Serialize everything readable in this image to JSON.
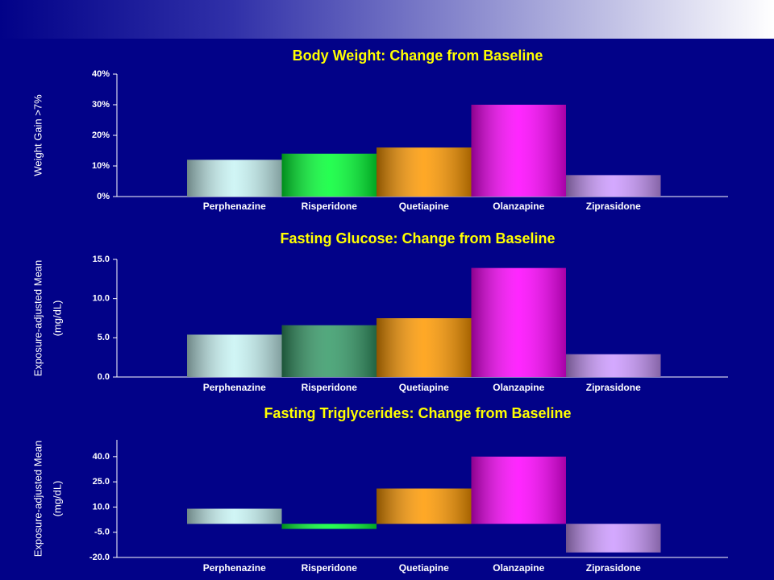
{
  "chart_data": [
    {
      "type": "bar",
      "title": "Body Weight: Change from Baseline",
      "y_label": [
        "Weight Gain >7%"
      ],
      "categories": [
        "Perphenazine",
        "Risperidone",
        "Quetiapine",
        "Olanzapine",
        "Ziprasidone"
      ],
      "values": [
        12,
        14,
        16,
        30,
        7
      ],
      "colors": [
        "#c8f4f4",
        "#00ff33",
        "#ff9900",
        "#ff00ff",
        "#cc99ff"
      ],
      "ylim": [
        0,
        40
      ],
      "yticks": [
        {
          "value": 0,
          "label": "0%"
        },
        {
          "value": 10,
          "label": "10%"
        },
        {
          "value": 20,
          "label": "20%"
        },
        {
          "value": 30,
          "label": "30%"
        },
        {
          "value": 40,
          "label": "40%"
        }
      ]
    },
    {
      "type": "bar",
      "title": "Fasting Glucose: Change from Baseline",
      "y_label": [
        "Exposure-adjusted Mean",
        "(mg/dL)"
      ],
      "categories": [
        "Perphenazine",
        "Risperidone",
        "Quetiapine",
        "Olanzapine",
        "Ziprasidone"
      ],
      "values": [
        5.4,
        6.6,
        7.5,
        13.9,
        2.9
      ],
      "colors": [
        "#c8f4f4",
        "#339966",
        "#ff9900",
        "#ff00ff",
        "#cc99ff"
      ],
      "ylim": [
        0,
        15
      ],
      "yticks": [
        {
          "value": 0,
          "label": "0.0"
        },
        {
          "value": 5,
          "label": "5.0"
        },
        {
          "value": 10,
          "label": "10.0"
        },
        {
          "value": 15,
          "label": "15.0"
        }
      ]
    },
    {
      "type": "bar",
      "title": "Fasting Triglycerides: Change from Baseline",
      "y_label": [
        "Exposure-adjusted Mean",
        "(mg/dL)"
      ],
      "categories": [
        "Perphenazine",
        "Risperidone",
        "Quetiapine",
        "Olanzapine",
        "Ziprasidone"
      ],
      "values": [
        9,
        -3,
        21,
        40,
        -17
      ],
      "colors": [
        "#c8f4f4",
        "#00ff33",
        "#ff9900",
        "#ff00ff",
        "#cc99ff"
      ],
      "ylim": [
        -20,
        50
      ],
      "yticks": [
        {
          "value": -20,
          "label": "-20.0"
        },
        {
          "value": -5,
          "label": "-5.0"
        },
        {
          "value": 10,
          "label": "10.0"
        },
        {
          "value": 25,
          "label": "25.0"
        },
        {
          "value": 40,
          "label": "40.0"
        }
      ]
    }
  ]
}
